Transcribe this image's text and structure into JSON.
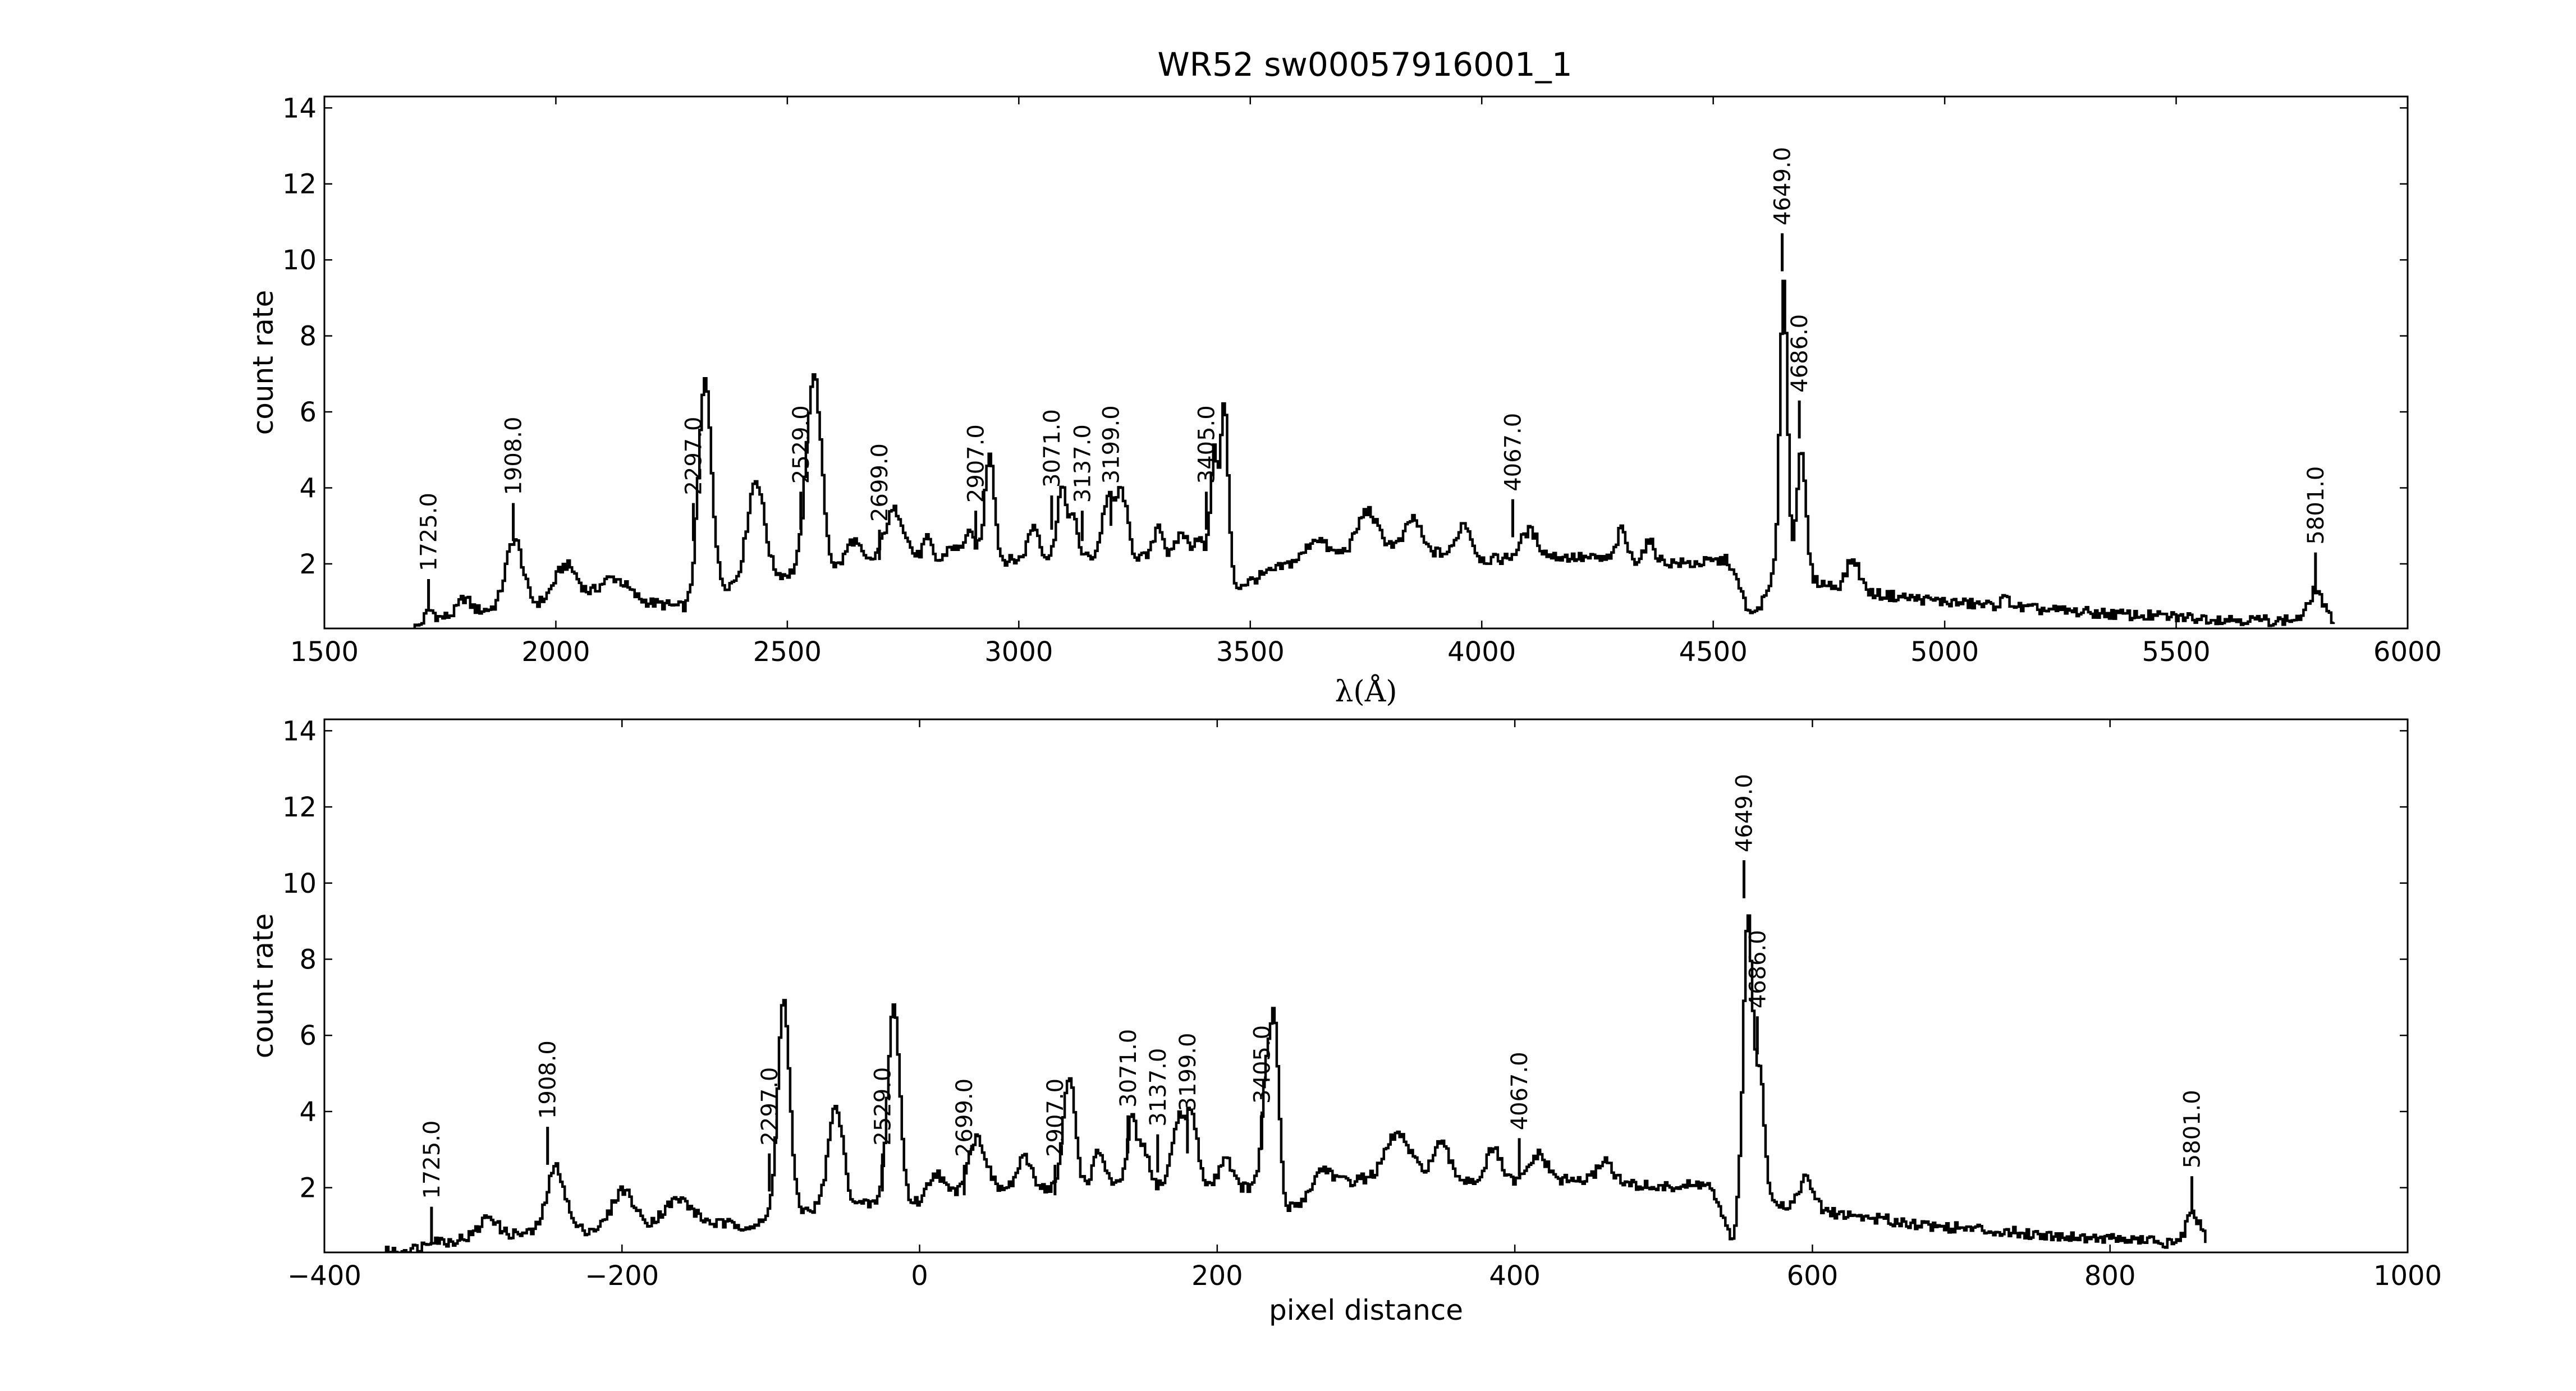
{
  "chart_data": {
    "title": "WR52  sw00057916001_1",
    "panels": [
      {
        "type": "line",
        "xlabel": "λ(Å)",
        "ylabel": "count rate",
        "xlim": [
          1500,
          6000
        ],
        "ylim": [
          0.3,
          14.3
        ],
        "xticks": [
          1500,
          2000,
          2500,
          3000,
          3500,
          4000,
          4500,
          5000,
          5500,
          6000
        ],
        "yticks": [
          2,
          4,
          6,
          8,
          10,
          12,
          14
        ],
        "xtick_labels": [
          "1500",
          "2000",
          "2500",
          "3000",
          "3500",
          "4000",
          "4500",
          "5000",
          "5500",
          "6000"
        ],
        "ytick_labels": [
          "2",
          "4",
          "6",
          "8",
          "10",
          "12",
          "14"
        ],
        "line_markers": [
          {
            "x": 1725,
            "y0": 0.8,
            "y1": 1.6,
            "label": "1725.0"
          },
          {
            "x": 1908,
            "y0": 2.6,
            "y1": 3.6,
            "label": "1908.0"
          },
          {
            "x": 2297,
            "y0": 2.6,
            "y1": 3.6,
            "label": "2297.0"
          },
          {
            "x": 2529,
            "y0": 2.9,
            "y1": 3.9,
            "label": "2529.0"
          },
          {
            "x": 2699,
            "y0": 2.1,
            "y1": 2.9,
            "label": "2699.0"
          },
          {
            "x": 2907,
            "y0": 2.4,
            "y1": 3.4,
            "label": "2907.0"
          },
          {
            "x": 3071,
            "y0": 2.9,
            "y1": 3.8,
            "label": "3071.0"
          },
          {
            "x": 3137,
            "y0": 2.6,
            "y1": 3.4,
            "label": "3137.0"
          },
          {
            "x": 3199,
            "y0": 3.0,
            "y1": 3.9,
            "label": "3199.0"
          },
          {
            "x": 3405,
            "y0": 2.9,
            "y1": 3.9,
            "label": "3405.0"
          },
          {
            "x": 4067,
            "y0": 2.7,
            "y1": 3.7,
            "label": "4067.0"
          },
          {
            "x": 4649,
            "y0": 9.7,
            "y1": 10.7,
            "label": "4649.0"
          },
          {
            "x": 4686,
            "y0": 5.3,
            "y1": 6.3,
            "label": "4686.0"
          },
          {
            "x": 5801,
            "y0": 1.3,
            "y1": 2.3,
            "label": "5801.0"
          }
        ],
        "spectrum": {
          "x_start": 1690,
          "x_end": 5840,
          "step": 5,
          "baseline": [
            [
              1690,
              0.3
            ],
            [
              1730,
              0.5
            ],
            [
              1800,
              0.75
            ],
            [
              1860,
              0.8
            ],
            [
              2000,
              0.95
            ],
            [
              2150,
              1.05
            ],
            [
              2280,
              0.85
            ],
            [
              2330,
              1.3
            ],
            [
              2420,
              1.6
            ],
            [
              2550,
              1.8
            ],
            [
              2700,
              2.0
            ],
            [
              3000,
              2.1
            ],
            [
              3200,
              2.2
            ],
            [
              3400,
              2.1
            ],
            [
              3470,
              1.4
            ],
            [
              3600,
              2.1
            ],
            [
              3800,
              2.5
            ],
            [
              4000,
              2.1
            ],
            [
              4150,
              2.2
            ],
            [
              4300,
              2.1
            ],
            [
              4450,
              2.0
            ],
            [
              4530,
              2.1
            ],
            [
              4580,
              0.6
            ],
            [
              4610,
              1.1
            ],
            [
              4640,
              2.0
            ],
            [
              4700,
              1.6
            ],
            [
              4760,
              1.4
            ],
            [
              4850,
              1.2
            ],
            [
              5000,
              1.0
            ],
            [
              5200,
              0.8
            ],
            [
              5400,
              0.65
            ],
            [
              5600,
              0.55
            ],
            [
              5720,
              0.5
            ],
            [
              5760,
              0.55
            ],
            [
              5840,
              0.5
            ]
          ],
          "peaks": [
            [
              1725,
              0.3,
              10
            ],
            [
              1800,
              0.35,
              12
            ],
            [
              1908,
              1.8,
              18
            ],
            [
              2020,
              1.0,
              25
            ],
            [
              2120,
              0.6,
              30
            ],
            [
              2320,
              5.6,
              14
            ],
            [
              2430,
              2.6,
              18
            ],
            [
              2555,
              5.2,
              16
            ],
            [
              2640,
              0.7,
              15
            ],
            [
              2730,
              1.4,
              22
            ],
            [
              2800,
              0.6,
              10
            ],
            [
              2850,
              0.4,
              10
            ],
            [
              2890,
              0.7,
              15
            ],
            [
              2935,
              2.9,
              10
            ],
            [
              3030,
              0.9,
              12
            ],
            [
              3090,
              1.8,
              10
            ],
            [
              3115,
              1.0,
              10
            ],
            [
              3190,
              1.5,
              12
            ],
            [
              3220,
              1.7,
              12
            ],
            [
              3300,
              0.9,
              10
            ],
            [
              3350,
              0.7,
              12
            ],
            [
              3385,
              0.6,
              10
            ],
            [
              3442,
              4.5,
              8
            ],
            [
              3420,
              3.0,
              8
            ],
            [
              3640,
              0.5,
              18
            ],
            [
              3750,
              1.0,
              20
            ],
            [
              3850,
              0.8,
              15
            ],
            [
              3960,
              0.9,
              15
            ],
            [
              4100,
              0.7,
              18
            ],
            [
              4300,
              0.8,
              10
            ],
            [
              4360,
              0.5,
              12
            ],
            [
              4650,
              7.5,
              8
            ],
            [
              4688,
              3.2,
              10
            ],
            [
              4800,
              0.8,
              14
            ],
            [
              5130,
              0.2,
              12
            ],
            [
              5800,
              0.8,
              14
            ]
          ]
        }
      },
      {
        "type": "line",
        "xlabel": "pixel distance",
        "ylabel": "count rate",
        "xlim": [
          -400,
          1000
        ],
        "ylim": [
          0.3,
          14.3
        ],
        "xticks": [
          -400,
          -200,
          0,
          200,
          400,
          600,
          800,
          1000
        ],
        "yticks": [
          2,
          4,
          6,
          8,
          10,
          12,
          14
        ],
        "xtick_labels": [
          "−400",
          "−200",
          "0",
          "200",
          "400",
          "600",
          "800",
          "1000"
        ],
        "ytick_labels": [
          "2",
          "4",
          "6",
          "8",
          "10",
          "12",
          "14"
        ],
        "line_markers": [
          {
            "x": -328,
            "y0": 0.5,
            "y1": 1.5,
            "label": "1725.0"
          },
          {
            "x": -250,
            "y0": 2.6,
            "y1": 3.6,
            "label": "1908.0"
          },
          {
            "x": -101,
            "y0": 1.9,
            "y1": 2.9,
            "label": "2297.0"
          },
          {
            "x": -25,
            "y0": 1.9,
            "y1": 2.9,
            "label": "2529.0"
          },
          {
            "x": 30,
            "y0": 1.8,
            "y1": 2.6,
            "label": "2699.0"
          },
          {
            "x": 91,
            "y0": 1.8,
            "y1": 2.6,
            "label": "2907.0"
          },
          {
            "x": 140,
            "y0": 2.9,
            "y1": 3.9,
            "label": "3071.0"
          },
          {
            "x": 160,
            "y0": 2.4,
            "y1": 3.4,
            "label": "3137.0"
          },
          {
            "x": 180,
            "y0": 2.9,
            "y1": 3.8,
            "label": "3199.0"
          },
          {
            "x": 230,
            "y0": 3.0,
            "y1": 4.0,
            "label": "3405.0"
          },
          {
            "x": 403,
            "y0": 2.3,
            "y1": 3.3,
            "label": "4067.0"
          },
          {
            "x": 554,
            "y0": 9.6,
            "y1": 10.6,
            "label": "4649.0"
          },
          {
            "x": 563,
            "y0": 5.5,
            "y1": 6.5,
            "label": "4686.0"
          },
          {
            "x": 855,
            "y0": 1.3,
            "y1": 2.3,
            "label": "5801.0"
          }
        ],
        "spectrum": {
          "x_start": -360,
          "x_end": 865,
          "step": 1.5,
          "baseline": [
            [
              -360,
              0.3
            ],
            [
              -330,
              0.45
            ],
            [
              -300,
              0.75
            ],
            [
              -260,
              0.8
            ],
            [
              -200,
              0.95
            ],
            [
              -160,
              1.1
            ],
            [
              -110,
              1.0
            ],
            [
              -95,
              1.3
            ],
            [
              -60,
              1.5
            ],
            [
              -20,
              1.6
            ],
            [
              0,
              1.6
            ],
            [
              30,
              1.9
            ],
            [
              100,
              2.0
            ],
            [
              170,
              2.1
            ],
            [
              225,
              2.0
            ],
            [
              245,
              1.4
            ],
            [
              280,
              2.1
            ],
            [
              330,
              2.5
            ],
            [
              380,
              2.1
            ],
            [
              440,
              2.2
            ],
            [
              500,
              2.0
            ],
            [
              530,
              2.1
            ],
            [
              545,
              0.6
            ],
            [
              550,
              1.3
            ],
            [
              565,
              2.0
            ],
            [
              580,
              1.5
            ],
            [
              620,
              1.3
            ],
            [
              680,
              1.0
            ],
            [
              760,
              0.75
            ],
            [
              830,
              0.6
            ],
            [
              845,
              0.45
            ],
            [
              865,
              0.5
            ]
          ],
          "peaks": [
            [
              -328,
              0.2,
              4
            ],
            [
              -290,
              0.5,
              5
            ],
            [
              -245,
              1.7,
              6
            ],
            [
              -200,
              1.0,
              7
            ],
            [
              -163,
              0.6,
              9
            ],
            [
              -92,
              5.6,
              4
            ],
            [
              -57,
              2.6,
              5
            ],
            [
              -18,
              5.2,
              4
            ],
            [
              10,
              0.7,
              5
            ],
            [
              38,
              1.4,
              6
            ],
            [
              70,
              0.8,
              5
            ],
            [
              100,
              2.9,
              4
            ],
            [
              120,
              0.9,
              4
            ],
            [
              142,
              1.8,
              3
            ],
            [
              150,
              1.0,
              3
            ],
            [
              173,
              1.6,
              4
            ],
            [
              182,
              1.8,
              4
            ],
            [
              205,
              0.8,
              4
            ],
            [
              238,
              4.5,
              3
            ],
            [
              232,
              2.8,
              3
            ],
            [
              270,
              0.6,
              6
            ],
            [
              320,
              1.0,
              7
            ],
            [
              350,
              0.8,
              5
            ],
            [
              385,
              0.9,
              5
            ],
            [
              415,
              0.7,
              6
            ],
            [
              460,
              0.6,
              5
            ],
            [
              556,
              7.5,
              3
            ],
            [
              564,
              3.0,
              3
            ],
            [
              595,
              0.8,
              5
            ],
            [
              855,
              0.8,
              5
            ]
          ]
        }
      }
    ]
  }
}
